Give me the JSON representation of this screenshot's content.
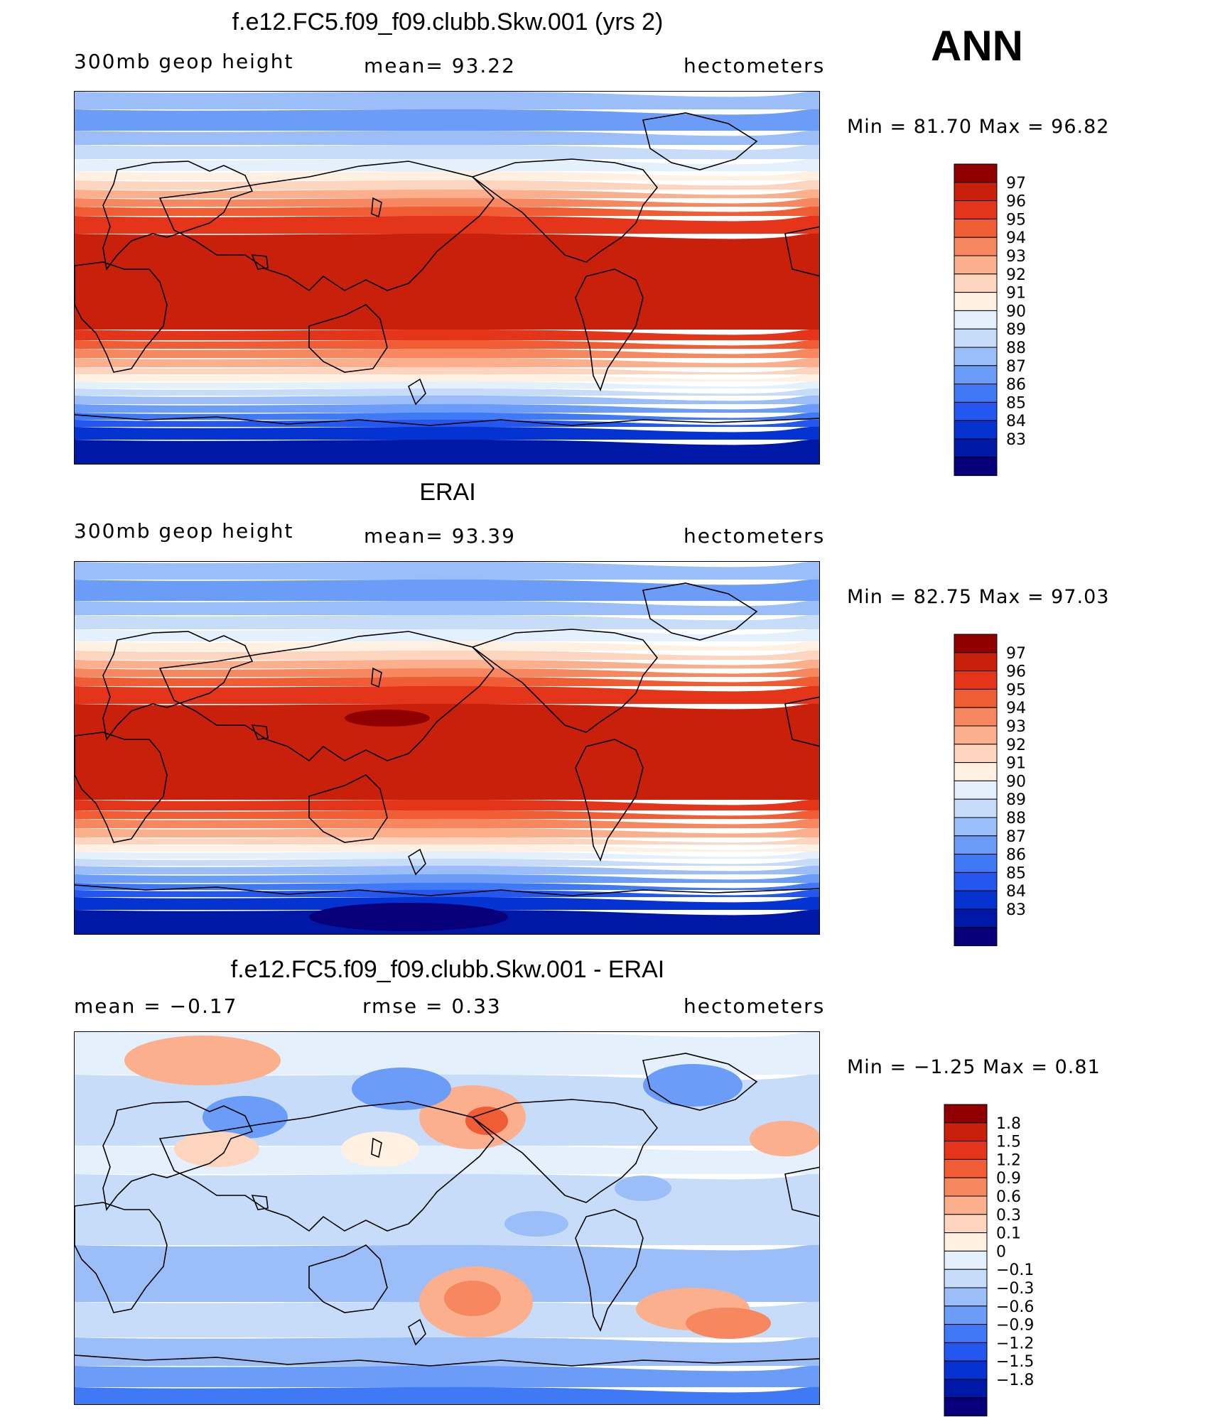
{
  "season": "ANN",
  "colors": {
    "geop_scale": [
      "#08007a",
      "#0018a6",
      "#0533d2",
      "#2456f0",
      "#3f79f6",
      "#6a9cf8",
      "#9bbef8",
      "#c6dcf9",
      "#e4f0fb",
      "#fff0e2",
      "#fdd4bd",
      "#fbaf8c",
      "#f7875f",
      "#f05d34",
      "#e4351a",
      "#c8200a",
      "#900000"
    ],
    "diff_scale": [
      "#08007a",
      "#0018a6",
      "#0533d2",
      "#2456f0",
      "#3f79f6",
      "#6a9cf8",
      "#9bbef8",
      "#c6dcf9",
      "#e4f0fb",
      "#fff0e2",
      "#fdd4bd",
      "#fbaf8c",
      "#f7875f",
      "#f05d34",
      "#e4351a",
      "#c8200a",
      "#900000"
    ]
  },
  "panels": [
    {
      "title": "f.e12.FC5.f09_f09.clubb.Skw.001 (yrs 2)",
      "left_label": "300mb geop height",
      "mid_label": "mean=   93.22",
      "right_label": "hectometers",
      "minmax": "Min =   81.70 Max =   96.82",
      "legend_labels": [
        "97",
        "96",
        "95",
        "94",
        "93",
        "92",
        "91",
        "90",
        "89",
        "88",
        "87",
        "86",
        "85",
        "84",
        "83"
      ]
    },
    {
      "title": "ERAI",
      "left_label": "300mb geop height",
      "mid_label": "mean=   93.39",
      "right_label": "hectometers",
      "minmax": "Min =   82.75 Max =   97.03",
      "legend_labels": [
        "97",
        "96",
        "95",
        "94",
        "93",
        "92",
        "91",
        "90",
        "89",
        "88",
        "87",
        "86",
        "85",
        "84",
        "83"
      ]
    },
    {
      "title": "f.e12.FC5.f09_f09.clubb.Skw.001 - ERAI",
      "left_label": "mean =   −0.17",
      "mid_label": "rmse =    0.33",
      "right_label": "hectometers",
      "minmax": "Min =   −1.25 Max =    0.81",
      "legend_labels": [
        "1.8",
        "1.5",
        "1.2",
        "0.9",
        "0.6",
        "0.3",
        "0.1",
        "0",
        "−0.1",
        "−0.3",
        "−0.6",
        "−0.9",
        "−1.2",
        "−1.5",
        "−1.8"
      ]
    }
  ]
}
